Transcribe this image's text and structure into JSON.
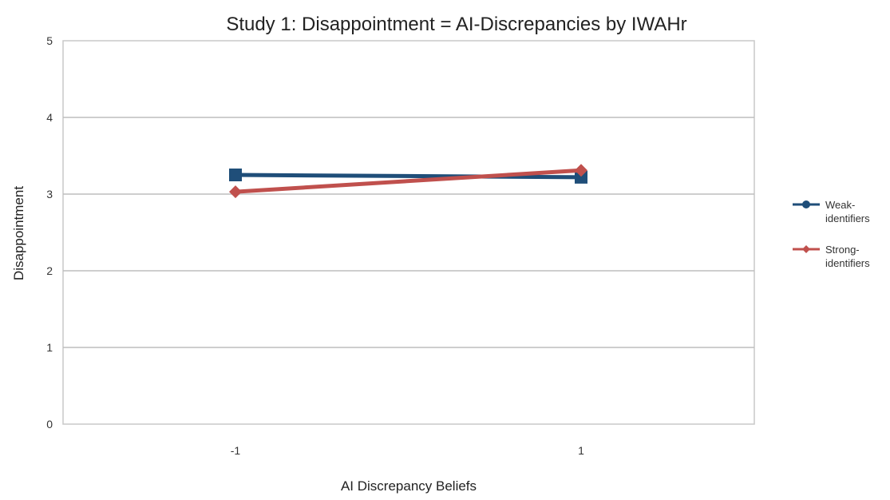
{
  "chart_data": {
    "type": "line",
    "title": "Study 1: Disappointment = AI-Discrepancies by IWAHr",
    "xlabel": "AI Discrepancy Beliefs",
    "ylabel": "Disappointment",
    "categories": [
      "-1",
      "1"
    ],
    "ylim": [
      0,
      5
    ],
    "yticks": [
      "0",
      "1",
      "2",
      "3",
      "4",
      "5"
    ],
    "grid": true,
    "legend_position": "right",
    "series": [
      {
        "name": "Weak-identifiers",
        "legend_lines": [
          "Weak-",
          "identifiers"
        ],
        "values": [
          3.25,
          3.22
        ],
        "color": "#1f4e79",
        "marker": "square"
      },
      {
        "name": "Strong-identifiers",
        "legend_lines": [
          "Strong-",
          "identifiers"
        ],
        "values": [
          3.03,
          3.31
        ],
        "color": "#c0504d",
        "marker": "diamond"
      }
    ]
  }
}
